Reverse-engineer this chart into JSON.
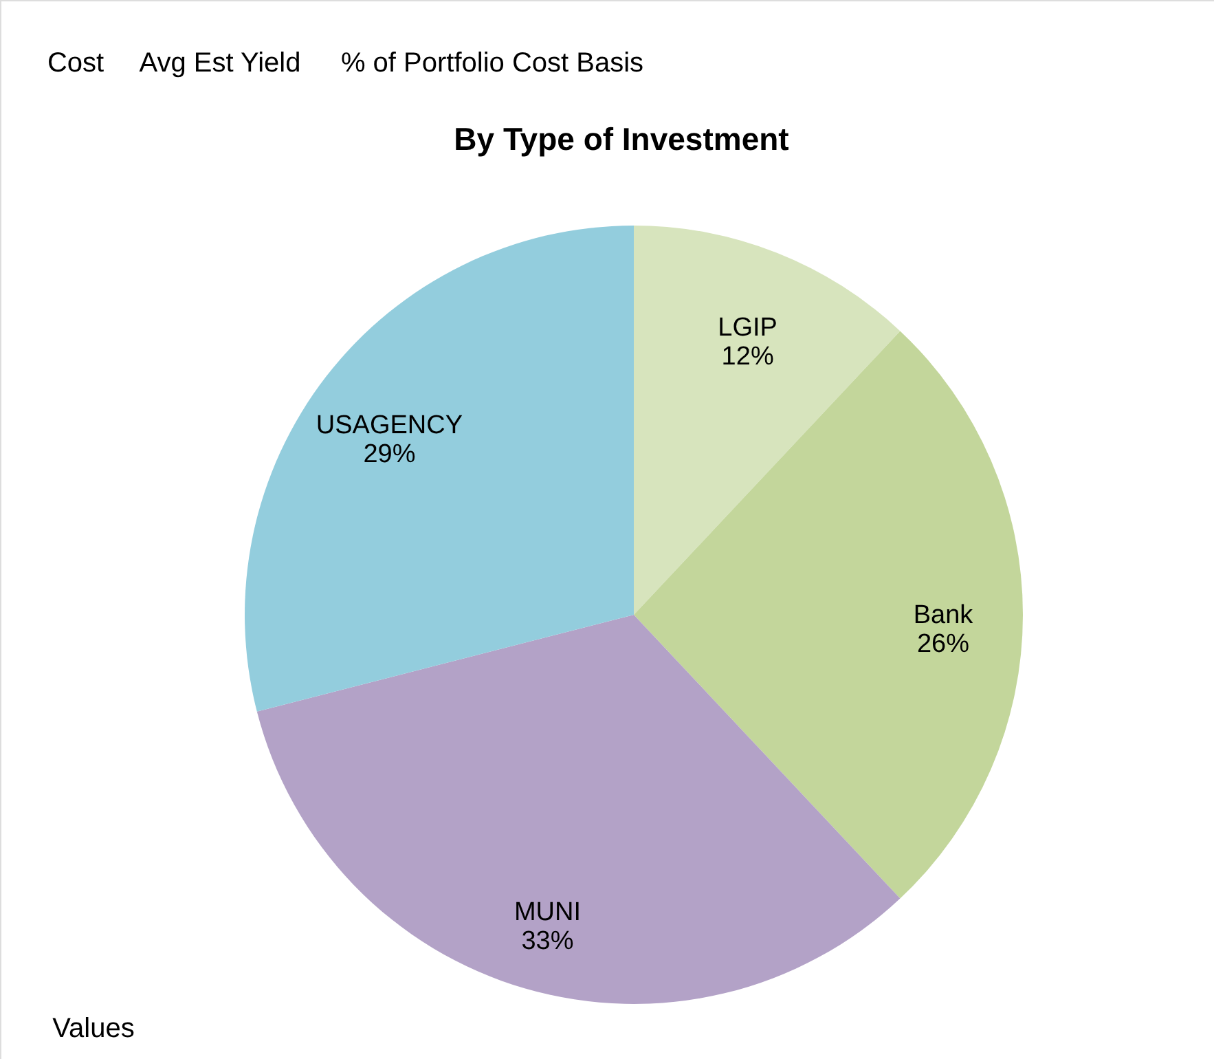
{
  "chart_data": {
    "type": "pie",
    "title": "By Type of Investment",
    "categories": [
      "LGIP",
      "Bank",
      "MUNI",
      "USAGENCY"
    ],
    "values": [
      12,
      26,
      33,
      29
    ],
    "value_labels": [
      "12%",
      "26%",
      "33%",
      "29%"
    ],
    "colors": [
      "#d7e4bd",
      "#c3d69b",
      "#b3a2c7",
      "#93cddd"
    ],
    "annotations": [
      "Cost",
      "Avg Est Yield",
      "% of Portfolio Cost Basis",
      "Values"
    ]
  }
}
